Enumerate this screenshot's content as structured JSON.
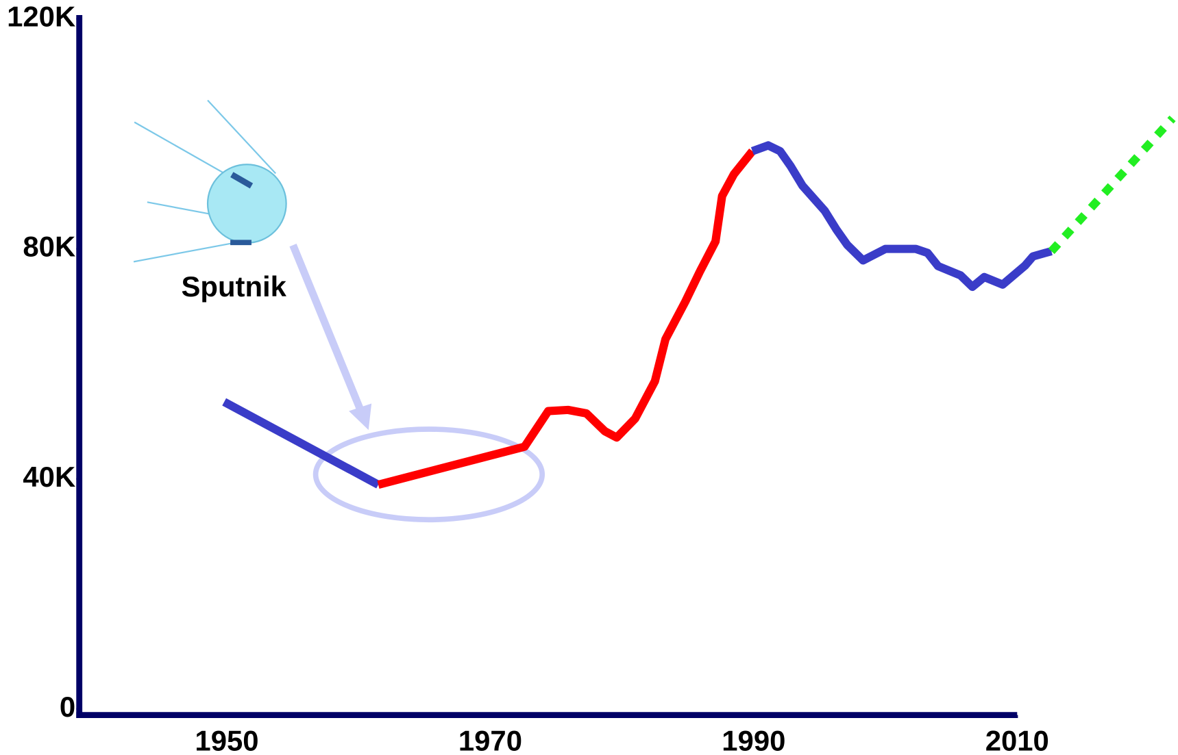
{
  "chart_data": {
    "type": "line",
    "annotations": [
      "Sputnik"
    ],
    "series": [
      {
        "color": "#3a3cc8",
        "style": "solid",
        "x": [
          1949.8,
          1961.5
        ],
        "values": [
          53400,
          39000
        ]
      },
      {
        "color": "#ff0000",
        "style": "solid",
        "x": [
          1961.5,
          1972.6,
          1974.4,
          1975.9,
          1977.3,
          1978.7,
          1979.6,
          1981,
          1982.5,
          1983.3,
          1984.8,
          1985.9,
          1987.1,
          1987.6,
          1988.5,
          1989.9
        ],
        "values": [
          39000,
          45600,
          51800,
          52000,
          51400,
          48300,
          47200,
          50500,
          57000,
          64300,
          70800,
          76000,
          81300,
          89200,
          93000,
          97000
        ]
      },
      {
        "color": "#3a3cc8",
        "style": "solid",
        "x": [
          1989.9,
          1991.1,
          1992,
          1992.8,
          1993.7,
          1995.4,
          1996.3,
          1997.1,
          1998.3,
          2000,
          2002.3,
          2003.2,
          2004,
          2005.7,
          2006.6,
          2007.5,
          2008.9,
          2010.6,
          2011.2,
          2012.6
        ],
        "values": [
          97000,
          98000,
          97000,
          94400,
          91000,
          86600,
          83300,
          80700,
          78000,
          80000,
          80000,
          79300,
          77000,
          75400,
          73400,
          75100,
          73800,
          77100,
          78700,
          79600
        ]
      },
      {
        "color": "#22ee22",
        "style": "dotted",
        "x": [
          2012.6,
          2021.8
        ],
        "values": [
          79600,
          102700
        ]
      }
    ],
    "xlim": [
      1938.8,
      2010
    ],
    "xticks": [
      1950,
      1970,
      1990,
      2010
    ],
    "ylim": [
      0,
      120000
    ],
    "yticks": [
      0,
      {
        "value": 40000,
        "label": "40K"
      },
      {
        "value": 80000,
        "label": "80K"
      },
      {
        "value": 120000,
        "label": "120K"
      }
    ],
    "grid": false
  }
}
